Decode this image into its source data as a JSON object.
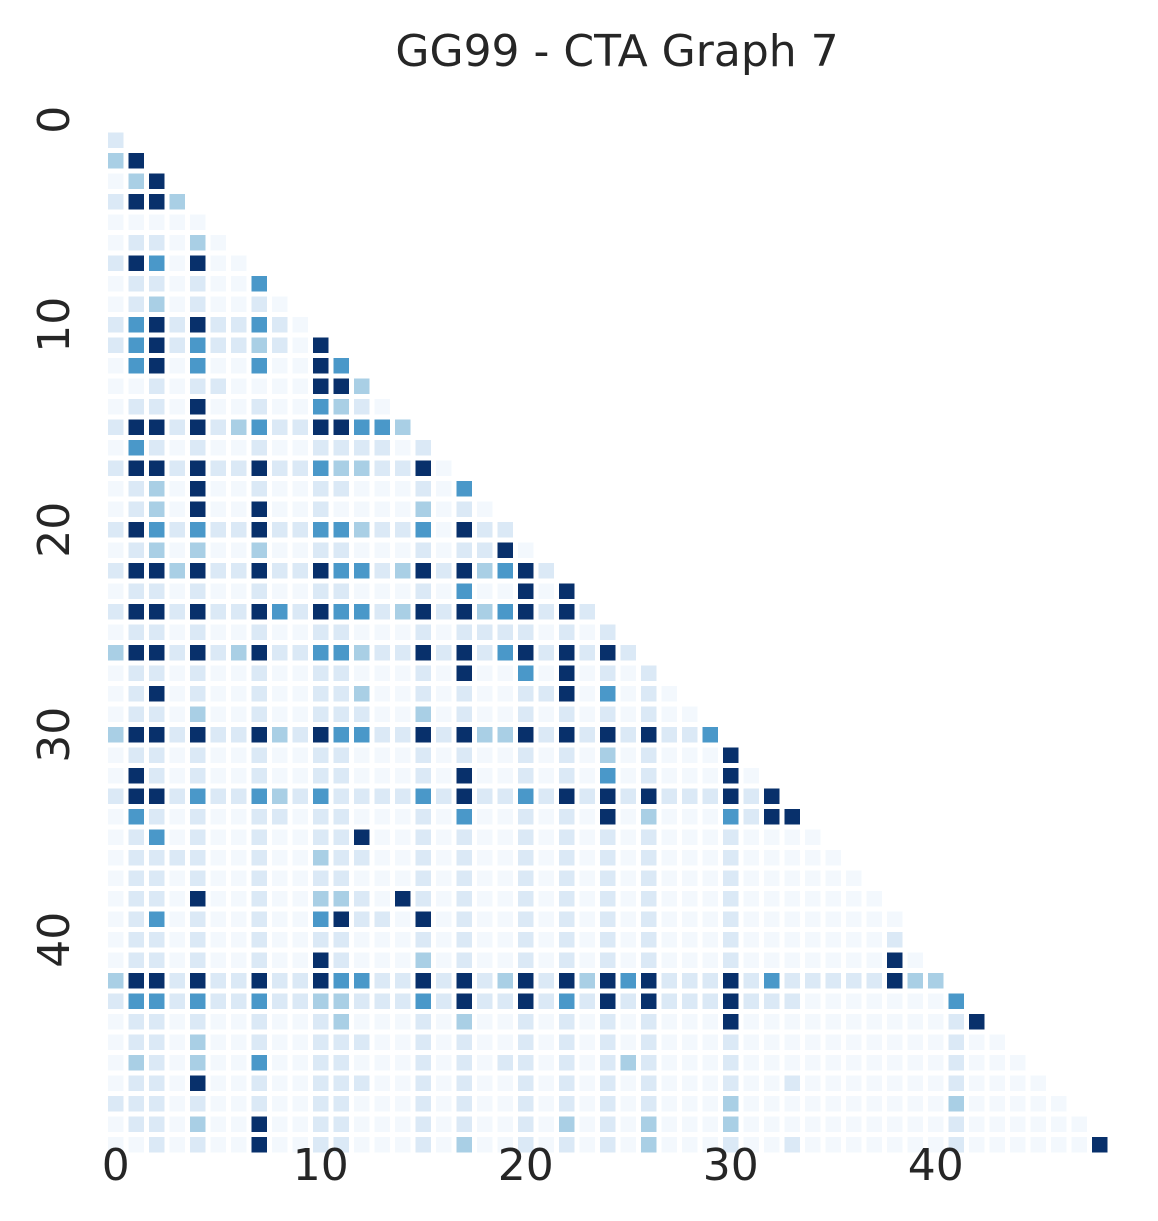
{
  "chart_data": {
    "type": "heatmap",
    "title": "GG99 - CTA Graph 7",
    "xlabel": "",
    "ylabel": "",
    "n": 49,
    "x_ticks": [
      0,
      10,
      20,
      30,
      40
    ],
    "y_ticks": [
      0,
      10,
      20,
      30,
      40
    ],
    "x_tick_labels": [
      "0",
      "10",
      "20",
      "30",
      "40"
    ],
    "y_tick_labels": [
      "0",
      "10",
      "20",
      "30",
      "40"
    ],
    "mask": "lower-triangle (row > col); upper triangle and diagonal blank",
    "colormap": "Blues",
    "value_range": [
      0,
      4
    ],
    "colorbar": false,
    "grid": false,
    "rows": [
      [],
      [
        1
      ],
      [
        2,
        4
      ],
      [
        0,
        2,
        4
      ],
      [
        1,
        4,
        4,
        2
      ],
      [
        0,
        0,
        0,
        0,
        0
      ],
      [
        0,
        1,
        1,
        0,
        2,
        0
      ],
      [
        1,
        4,
        3,
        0,
        4,
        0,
        0
      ],
      [
        0,
        1,
        1,
        0,
        1,
        0,
        0,
        3
      ],
      [
        0,
        1,
        2,
        0,
        1,
        0,
        0,
        1,
        0
      ],
      [
        1,
        3,
        4,
        1,
        4,
        1,
        1,
        3,
        1,
        0
      ],
      [
        1,
        3,
        4,
        1,
        3,
        1,
        1,
        2,
        1,
        0,
        4
      ],
      [
        0,
        3,
        4,
        0,
        3,
        0,
        0,
        3,
        0,
        0,
        4,
        3
      ],
      [
        0,
        0,
        1,
        0,
        1,
        1,
        0,
        0,
        0,
        0,
        4,
        4,
        2
      ],
      [
        0,
        1,
        1,
        0,
        4,
        0,
        0,
        1,
        0,
        0,
        3,
        2,
        1,
        0
      ],
      [
        1,
        4,
        4,
        1,
        4,
        1,
        2,
        3,
        1,
        1,
        4,
        4,
        3,
        3,
        2
      ],
      [
        0,
        3,
        1,
        0,
        1,
        0,
        0,
        1,
        0,
        0,
        1,
        1,
        1,
        1,
        0,
        1
      ],
      [
        1,
        4,
        4,
        1,
        4,
        1,
        1,
        4,
        1,
        1,
        3,
        2,
        2,
        1,
        1,
        4,
        0
      ],
      [
        0,
        1,
        2,
        0,
        4,
        0,
        0,
        1,
        0,
        0,
        1,
        1,
        0,
        0,
        0,
        1,
        0,
        3
      ],
      [
        0,
        1,
        2,
        0,
        4,
        0,
        0,
        4,
        0,
        0,
        1,
        0,
        0,
        0,
        0,
        2,
        0,
        1,
        0
      ],
      [
        1,
        4,
        3,
        1,
        3,
        1,
        1,
        4,
        1,
        1,
        3,
        3,
        2,
        1,
        1,
        3,
        0,
        4,
        1,
        1
      ],
      [
        0,
        1,
        2,
        0,
        2,
        0,
        0,
        2,
        0,
        0,
        1,
        1,
        0,
        0,
        0,
        1,
        0,
        1,
        1,
        4,
        0
      ],
      [
        1,
        4,
        4,
        2,
        4,
        1,
        1,
        4,
        1,
        1,
        4,
        3,
        3,
        1,
        2,
        4,
        1,
        4,
        2,
        3,
        4,
        1
      ],
      [
        0,
        1,
        1,
        0,
        1,
        0,
        0,
        1,
        0,
        0,
        1,
        1,
        0,
        0,
        0,
        1,
        0,
        3,
        0,
        0,
        4,
        0,
        4
      ],
      [
        1,
        4,
        4,
        1,
        4,
        1,
        1,
        4,
        3,
        1,
        4,
        3,
        3,
        1,
        2,
        4,
        1,
        4,
        2,
        3,
        4,
        1,
        4,
        1
      ],
      [
        0,
        1,
        1,
        0,
        1,
        0,
        0,
        1,
        0,
        0,
        1,
        1,
        0,
        0,
        0,
        1,
        0,
        1,
        1,
        1,
        1,
        0,
        1,
        0,
        1
      ],
      [
        2,
        4,
        4,
        1,
        4,
        1,
        2,
        4,
        1,
        1,
        3,
        3,
        2,
        1,
        1,
        4,
        1,
        4,
        1,
        3,
        4,
        1,
        4,
        1,
        4,
        1
      ],
      [
        0,
        1,
        1,
        0,
        1,
        0,
        0,
        1,
        0,
        0,
        1,
        1,
        0,
        0,
        0,
        1,
        0,
        4,
        0,
        0,
        3,
        0,
        4,
        0,
        1,
        0,
        1
      ],
      [
        0,
        1,
        4,
        0,
        1,
        0,
        0,
        1,
        0,
        0,
        1,
        1,
        2,
        0,
        0,
        1,
        0,
        1,
        0,
        0,
        1,
        1,
        4,
        0,
        3,
        0,
        1,
        0
      ],
      [
        0,
        1,
        1,
        0,
        2,
        0,
        0,
        1,
        0,
        0,
        1,
        1,
        1,
        0,
        0,
        2,
        0,
        1,
        0,
        0,
        1,
        0,
        1,
        0,
        1,
        0,
        1,
        0,
        0
      ],
      [
        2,
        4,
        4,
        1,
        4,
        1,
        1,
        4,
        2,
        1,
        4,
        3,
        3,
        1,
        1,
        4,
        1,
        4,
        2,
        2,
        4,
        1,
        4,
        1,
        4,
        1,
        4,
        1,
        1,
        3
      ],
      [
        0,
        1,
        1,
        0,
        1,
        0,
        0,
        1,
        0,
        0,
        1,
        1,
        0,
        0,
        0,
        1,
        0,
        1,
        0,
        0,
        1,
        0,
        1,
        0,
        2,
        0,
        1,
        0,
        0,
        0,
        4
      ],
      [
        0,
        4,
        1,
        0,
        1,
        0,
        0,
        1,
        0,
        0,
        1,
        1,
        0,
        0,
        0,
        1,
        0,
        4,
        0,
        0,
        1,
        0,
        1,
        0,
        3,
        0,
        1,
        0,
        0,
        0,
        4,
        0
      ],
      [
        1,
        4,
        4,
        1,
        3,
        1,
        1,
        3,
        2,
        1,
        3,
        1,
        1,
        1,
        1,
        3,
        1,
        4,
        1,
        1,
        3,
        1,
        4,
        1,
        4,
        1,
        4,
        1,
        1,
        1,
        4,
        1,
        4
      ],
      [
        0,
        3,
        1,
        0,
        1,
        0,
        0,
        1,
        1,
        0,
        1,
        1,
        0,
        0,
        0,
        1,
        0,
        3,
        0,
        0,
        1,
        0,
        1,
        0,
        4,
        0,
        2,
        0,
        0,
        0,
        3,
        1,
        4,
        4
      ],
      [
        0,
        1,
        3,
        0,
        1,
        0,
        0,
        1,
        0,
        0,
        1,
        1,
        4,
        0,
        0,
        1,
        0,
        1,
        0,
        0,
        1,
        0,
        1,
        0,
        1,
        0,
        1,
        0,
        0,
        0,
        1,
        0,
        0,
        0,
        0
      ],
      [
        0,
        1,
        1,
        1,
        1,
        0,
        0,
        1,
        0,
        0,
        2,
        1,
        1,
        0,
        0,
        1,
        0,
        1,
        0,
        0,
        1,
        0,
        1,
        0,
        1,
        0,
        1,
        0,
        0,
        0,
        1,
        0,
        0,
        0,
        0,
        0
      ],
      [
        0,
        1,
        1,
        0,
        1,
        0,
        0,
        1,
        0,
        0,
        1,
        1,
        0,
        0,
        0,
        1,
        0,
        1,
        0,
        0,
        1,
        0,
        1,
        0,
        1,
        0,
        1,
        0,
        0,
        0,
        1,
        0,
        0,
        0,
        0,
        0,
        0
      ],
      [
        0,
        1,
        1,
        0,
        4,
        0,
        0,
        1,
        0,
        0,
        2,
        2,
        1,
        0,
        4,
        1,
        0,
        1,
        0,
        0,
        1,
        0,
        1,
        0,
        1,
        0,
        1,
        0,
        0,
        0,
        1,
        0,
        0,
        0,
        0,
        0,
        0,
        0
      ],
      [
        0,
        1,
        3,
        0,
        1,
        0,
        0,
        1,
        0,
        0,
        3,
        4,
        1,
        1,
        0,
        4,
        0,
        1,
        0,
        0,
        1,
        0,
        1,
        0,
        1,
        0,
        1,
        0,
        0,
        0,
        1,
        0,
        0,
        0,
        0,
        0,
        0,
        0,
        0
      ],
      [
        0,
        1,
        1,
        0,
        1,
        0,
        0,
        1,
        0,
        0,
        1,
        1,
        0,
        0,
        0,
        1,
        0,
        1,
        0,
        0,
        1,
        0,
        1,
        0,
        1,
        0,
        1,
        0,
        0,
        0,
        1,
        0,
        0,
        0,
        0,
        0,
        0,
        0,
        1
      ],
      [
        0,
        1,
        1,
        0,
        1,
        0,
        0,
        1,
        0,
        0,
        4,
        1,
        0,
        0,
        0,
        2,
        0,
        1,
        0,
        0,
        1,
        0,
        1,
        0,
        1,
        0,
        1,
        0,
        0,
        0,
        1,
        0,
        0,
        0,
        0,
        0,
        0,
        0,
        4,
        0
      ],
      [
        2,
        4,
        4,
        1,
        4,
        1,
        1,
        4,
        1,
        1,
        4,
        3,
        3,
        1,
        1,
        4,
        1,
        4,
        1,
        2,
        4,
        1,
        4,
        2,
        4,
        3,
        4,
        1,
        1,
        1,
        4,
        1,
        3,
        1,
        1,
        1,
        1,
        1,
        4,
        2,
        2
      ],
      [
        1,
        3,
        3,
        1,
        3,
        1,
        1,
        3,
        1,
        1,
        2,
        2,
        1,
        1,
        1,
        3,
        1,
        4,
        1,
        1,
        4,
        1,
        3,
        1,
        4,
        1,
        4,
        1,
        1,
        1,
        4,
        1,
        1,
        1,
        0,
        0,
        0,
        0,
        0,
        0,
        0,
        3
      ],
      [
        0,
        1,
        1,
        0,
        1,
        0,
        0,
        1,
        0,
        0,
        1,
        2,
        0,
        0,
        0,
        1,
        0,
        2,
        0,
        0,
        1,
        0,
        1,
        0,
        1,
        0,
        1,
        0,
        0,
        0,
        4,
        0,
        0,
        0,
        0,
        0,
        0,
        0,
        0,
        0,
        0,
        1,
        4
      ],
      [
        0,
        1,
        1,
        0,
        2,
        0,
        0,
        1,
        0,
        0,
        1,
        1,
        1,
        0,
        0,
        1,
        0,
        1,
        0,
        0,
        1,
        0,
        1,
        0,
        1,
        0,
        1,
        0,
        0,
        0,
        1,
        0,
        0,
        0,
        0,
        0,
        0,
        0,
        0,
        0,
        0,
        1,
        0,
        0
      ],
      [
        0,
        2,
        1,
        0,
        2,
        0,
        0,
        3,
        0,
        0,
        1,
        1,
        0,
        0,
        0,
        1,
        0,
        1,
        0,
        1,
        1,
        0,
        1,
        0,
        1,
        2,
        1,
        0,
        0,
        0,
        1,
        0,
        0,
        0,
        0,
        0,
        0,
        0,
        0,
        0,
        0,
        1,
        0,
        0,
        0
      ],
      [
        0,
        1,
        1,
        0,
        4,
        0,
        0,
        1,
        0,
        0,
        1,
        1,
        1,
        0,
        0,
        1,
        0,
        1,
        0,
        0,
        1,
        0,
        1,
        0,
        1,
        0,
        1,
        0,
        0,
        0,
        1,
        0,
        0,
        1,
        0,
        0,
        0,
        0,
        0,
        0,
        0,
        1,
        0,
        0,
        0,
        0
      ],
      [
        1,
        1,
        1,
        0,
        1,
        0,
        0,
        1,
        0,
        0,
        1,
        1,
        0,
        0,
        0,
        1,
        0,
        1,
        0,
        0,
        1,
        0,
        1,
        0,
        1,
        0,
        1,
        0,
        0,
        0,
        2,
        0,
        0,
        0,
        0,
        0,
        0,
        0,
        0,
        0,
        0,
        2,
        0,
        0,
        0,
        0,
        0
      ],
      [
        0,
        1,
        1,
        0,
        2,
        0,
        0,
        4,
        0,
        0,
        1,
        1,
        0,
        0,
        0,
        1,
        0,
        1,
        0,
        0,
        1,
        0,
        2,
        0,
        1,
        0,
        2,
        0,
        0,
        0,
        2,
        0,
        0,
        0,
        0,
        0,
        0,
        0,
        0,
        0,
        0,
        1,
        0,
        0,
        0,
        0,
        0,
        0
      ],
      [
        0,
        0,
        1,
        0,
        1,
        0,
        0,
        4,
        0,
        0,
        1,
        1,
        0,
        0,
        0,
        1,
        0,
        2,
        0,
        0,
        1,
        0,
        1,
        0,
        1,
        0,
        2,
        0,
        0,
        0,
        1,
        0,
        0,
        1,
        0,
        0,
        0,
        0,
        0,
        0,
        0,
        1,
        0,
        0,
        0,
        0,
        0,
        0,
        4
      ]
    ]
  },
  "colors": {
    "scale": [
      "#f3f8fd",
      "#dbe9f6",
      "#a9cfe5",
      "#4a98c9",
      "#08306b"
    ],
    "text": "#262626",
    "background": "#ffffff"
  }
}
